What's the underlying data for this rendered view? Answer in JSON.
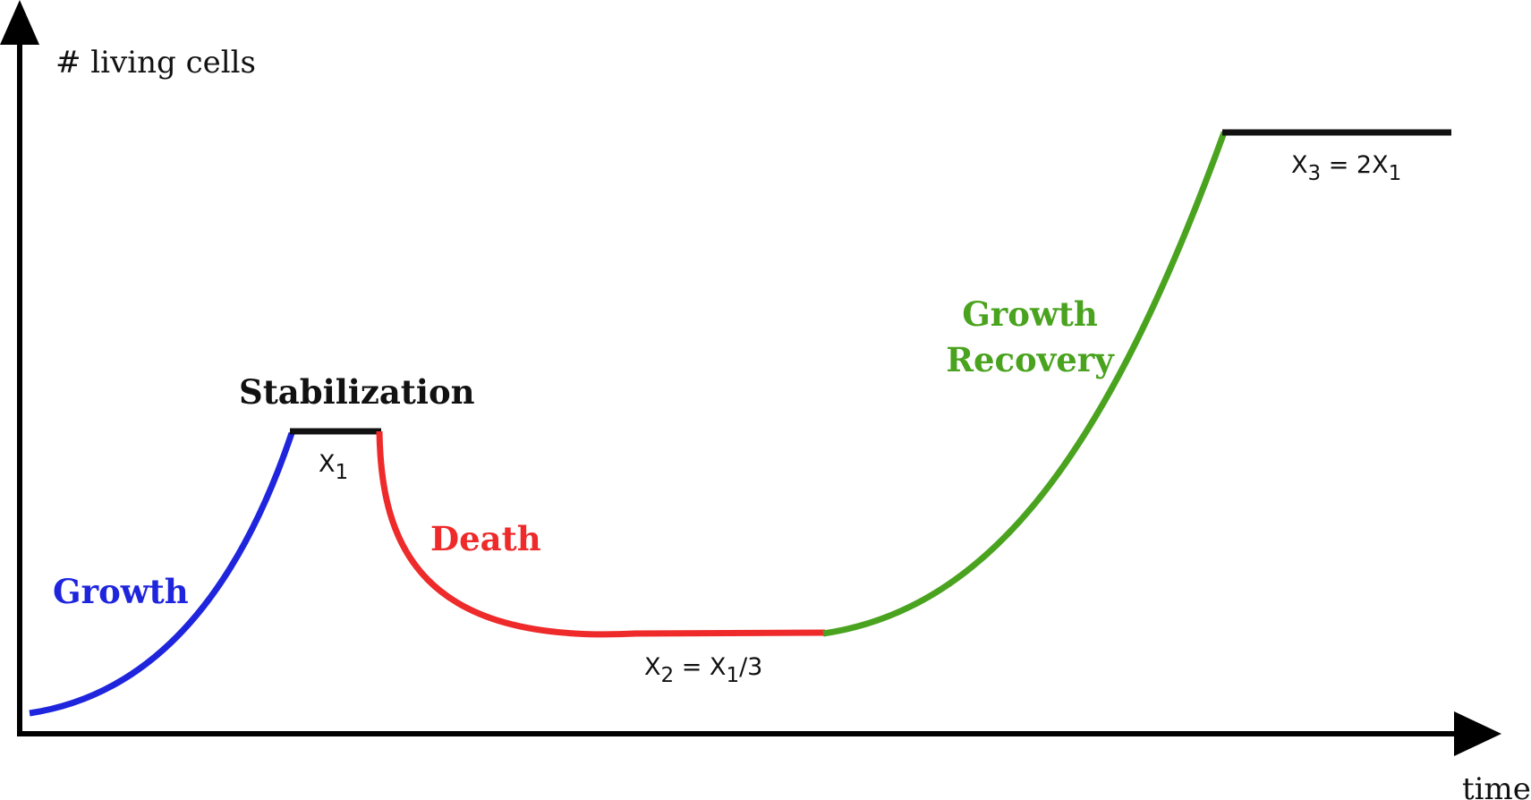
{
  "chart_data": {
    "type": "line",
    "y_axis_label": "# living cells",
    "x_axis_label": "time",
    "colors": {
      "growth": "#1f25dd",
      "stable": "#111111",
      "death": "#ee2a2a",
      "recovery": "#4aa31f"
    },
    "phases": [
      {
        "key": "growth",
        "label": "Growth",
        "label2": ""
      },
      {
        "key": "stable",
        "label": "Stabilization",
        "label2": ""
      },
      {
        "key": "death",
        "label": "Death",
        "label2": ""
      },
      {
        "key": "recovery",
        "label": "Growth",
        "label2": "Recovery"
      }
    ],
    "levels": {
      "x1": {
        "var": "X",
        "sub": "1",
        "rest": "",
        "rest_sub": "",
        "tail": ""
      },
      "x2": {
        "var": "X",
        "sub": "2",
        "rest": " = X",
        "rest_sub": "1",
        "tail": "/3"
      },
      "x3": {
        "var": "X",
        "sub": "3",
        "rest": " = 2X",
        "rest_sub": "1",
        "tail": ""
      }
    }
  }
}
